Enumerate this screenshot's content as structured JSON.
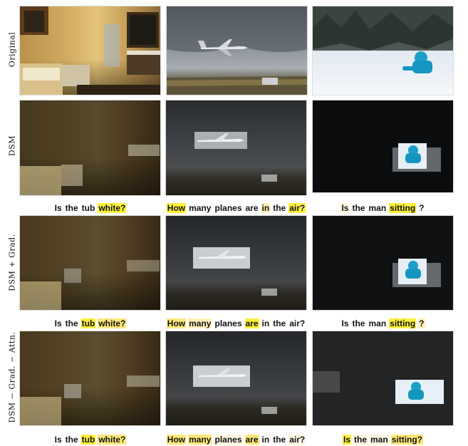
{
  "row_labels": [
    "Original",
    "DSM",
    "DSM + Grad.",
    "DSM − Grad. − Attn."
  ],
  "captions": [
    [
      {
        "words": [
          "Is",
          "the",
          "tub",
          "white?"
        ],
        "levels": [
          0,
          0,
          0,
          0
        ]
      },
      {
        "words": [
          "How",
          "many",
          "planes",
          "are",
          "in",
          "the",
          "air?"
        ],
        "levels": [
          0,
          0,
          0,
          0,
          0,
          0,
          0
        ]
      },
      {
        "words": [
          "Is",
          "the",
          "man",
          "sitting",
          "?"
        ],
        "levels": [
          0,
          0,
          0,
          0,
          0
        ]
      }
    ],
    [
      {
        "words": [
          "Is",
          "the",
          "tub",
          "white?"
        ],
        "levels": [
          0,
          0,
          0,
          4
        ]
      },
      {
        "words": [
          "How",
          "many",
          "planes",
          "are",
          "in",
          "the",
          "air?"
        ],
        "levels": [
          4,
          0,
          0,
          0,
          2,
          0,
          4
        ]
      },
      {
        "words": [
          "Is",
          "the",
          "man",
          "sitting",
          "?"
        ],
        "levels": [
          1,
          0,
          0,
          4,
          0
        ]
      }
    ],
    [
      {
        "words": [
          "Is",
          "the",
          "tub",
          "white?"
        ],
        "levels": [
          0,
          0,
          4,
          3
        ]
      },
      {
        "words": [
          "How",
          "many",
          "planes",
          "are",
          "in",
          "the",
          "air?"
        ],
        "levels": [
          3,
          2,
          0,
          4,
          0,
          0,
          0
        ]
      },
      {
        "words": [
          "Is",
          "the",
          "man",
          "sitting",
          "?"
        ],
        "levels": [
          0,
          0,
          0,
          4,
          2
        ]
      }
    ],
    [
      {
        "words": [
          "Is",
          "the",
          "tub",
          "white?"
        ],
        "levels": [
          0,
          0,
          4,
          3
        ]
      },
      {
        "words": [
          "How",
          "many",
          "planes",
          "are",
          "in",
          "the",
          "air?"
        ],
        "levels": [
          3,
          3,
          1,
          3,
          0,
          0,
          1
        ]
      },
      {
        "words": [
          "Is",
          "the",
          "man",
          "sitting?"
        ],
        "levels": [
          4,
          1,
          1,
          3
        ]
      }
    ]
  ],
  "colors": {
    "highlight_strong": "#fff23a",
    "highlight_mid": "#fee97a",
    "highlight_light": "#fdf0b8",
    "highlight_faint": "#fdf6e0"
  }
}
